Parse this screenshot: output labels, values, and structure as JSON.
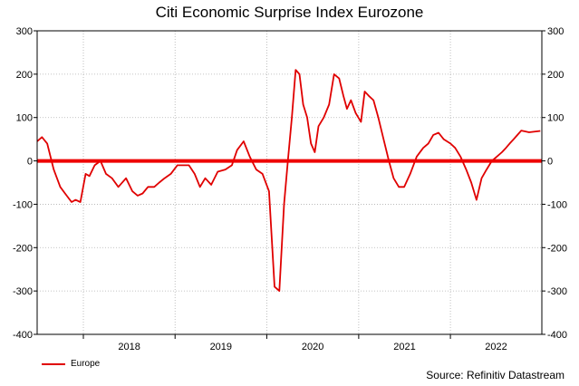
{
  "chart_data": {
    "type": "line",
    "title": "Citi Economic Surprise Index  Eurozone",
    "xlabel": "",
    "ylabel": "",
    "ylim": [
      -400,
      300
    ],
    "yticks": [
      300,
      200,
      100,
      0,
      -100,
      -200,
      -300,
      -400
    ],
    "xlim": [
      "2017-07-01",
      "2022-12-31"
    ],
    "xtick_labels": [
      "2018",
      "2019",
      "2020",
      "2021",
      "2022"
    ],
    "grid": true,
    "legend_position": "bottom-left",
    "source": "Source: Refinitiv Datastream",
    "zero_line_color": "#ee0000",
    "series": [
      {
        "name": "Europe",
        "color": "#e00000",
        "x": [
          "2017-07-01",
          "2017-07-20",
          "2017-08-10",
          "2017-09-05",
          "2017-10-01",
          "2017-10-20",
          "2017-11-15",
          "2017-12-01",
          "2017-12-20",
          "2018-01-10",
          "2018-01-25",
          "2018-02-15",
          "2018-03-10",
          "2018-04-01",
          "2018-04-25",
          "2018-05-20",
          "2018-06-20",
          "2018-07-15",
          "2018-08-05",
          "2018-08-25",
          "2018-09-15",
          "2018-10-10",
          "2018-10-30",
          "2018-11-20",
          "2018-12-15",
          "2019-01-10",
          "2019-02-01",
          "2019-02-25",
          "2019-03-20",
          "2019-04-10",
          "2019-05-01",
          "2019-05-25",
          "2019-06-20",
          "2019-07-20",
          "2019-08-15",
          "2019-09-05",
          "2019-10-01",
          "2019-10-25",
          "2019-11-20",
          "2019-12-15",
          "2020-01-10",
          "2020-02-01",
          "2020-02-20",
          "2020-03-10",
          "2020-03-25",
          "2020-04-10",
          "2020-04-25",
          "2020-05-10",
          "2020-05-25",
          "2020-06-10",
          "2020-06-25",
          "2020-07-10",
          "2020-07-25",
          "2020-08-15",
          "2020-09-05",
          "2020-09-25",
          "2020-10-15",
          "2020-11-01",
          "2020-11-15",
          "2020-12-01",
          "2020-12-20",
          "2021-01-10",
          "2021-01-25",
          "2021-02-10",
          "2021-03-01",
          "2021-03-20",
          "2021-04-10",
          "2021-05-01",
          "2021-05-20",
          "2021-06-10",
          "2021-07-01",
          "2021-07-25",
          "2021-08-20",
          "2021-09-15",
          "2021-10-05",
          "2021-10-25",
          "2021-11-15",
          "2021-12-05",
          "2022-01-01",
          "2022-01-20",
          "2022-02-10",
          "2022-03-05",
          "2022-03-25",
          "2022-04-15",
          "2022-05-05",
          "2022-05-25",
          "2022-06-15",
          "2022-07-05",
          "2022-07-25",
          "2022-08-10",
          "2022-08-25",
          "2022-09-10",
          "2022-09-25",
          "2022-10-10",
          "2022-10-25",
          "2022-11-10",
          "2022-11-25",
          "2022-12-10",
          "2022-12-25"
        ],
        "values": [
          45,
          55,
          40,
          -20,
          -60,
          -75,
          -95,
          -90,
          -95,
          -30,
          -35,
          -10,
          0,
          -30,
          -40,
          -60,
          -40,
          -70,
          -80,
          -75,
          -60,
          -60,
          -50,
          -40,
          -30,
          -10,
          -10,
          -10,
          -30,
          -60,
          -40,
          -55,
          -25,
          -20,
          -10,
          25,
          45,
          10,
          -20,
          -30,
          -70,
          -290,
          -300,
          -100,
          0,
          100,
          210,
          200,
          130,
          100,
          40,
          20,
          80,
          100,
          130,
          200,
          190,
          150,
          120,
          140,
          110,
          90,
          160,
          150,
          140,
          100,
          50,
          0,
          -40,
          -60,
          -60,
          -30,
          10,
          30,
          40,
          60,
          65,
          50,
          40,
          30,
          10,
          -20,
          -50,
          -90,
          -40,
          -20,
          0,
          10,
          20,
          30,
          40,
          50,
          60,
          70,
          68,
          66,
          67,
          68,
          69
        ]
      }
    ]
  }
}
